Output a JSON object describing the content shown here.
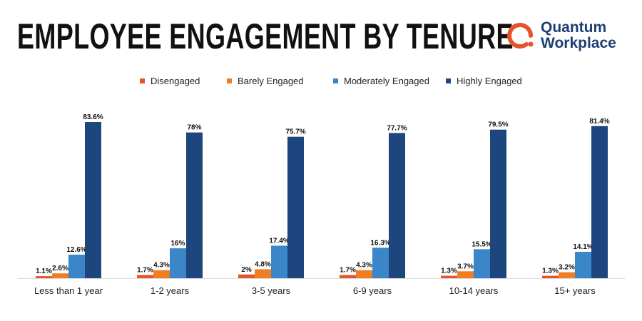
{
  "chart_data": {
    "type": "bar",
    "title": "EMPLOYEE ENGAGEMENT BY TENURE",
    "categories": [
      "Less than 1 year",
      "1-2 years",
      "3-5 years",
      "6-9 years",
      "10-14 years",
      "15+ years"
    ],
    "series": [
      {
        "name": "Disengaged",
        "color": "#e5532b",
        "values": [
          1.1,
          1.7,
          2,
          1.7,
          1.3,
          1.3
        ],
        "labels": [
          "1.1%",
          "1.7%",
          "2%",
          "1.7%",
          "1.3%",
          "1.3%"
        ]
      },
      {
        "name": "Barely Engaged",
        "color": "#f07d22",
        "values": [
          2.6,
          4.3,
          4.8,
          4.3,
          3.7,
          3.2
        ],
        "labels": [
          "2.6%",
          "4.3%",
          "4.8%",
          "4.3%",
          "3.7%",
          "3.2%"
        ]
      },
      {
        "name": "Moderately Engaged",
        "color": "#3a86c8",
        "values": [
          12.6,
          16,
          17.4,
          16.3,
          15.5,
          14.1
        ],
        "labels": [
          "12.6%",
          "16%",
          "17.4%",
          "16.3%",
          "15.5%",
          "14.1%"
        ]
      },
      {
        "name": "Highly Engaged",
        "color": "#1c467d",
        "values": [
          83.6,
          78,
          75.7,
          77.7,
          79.5,
          81.4
        ],
        "labels": [
          "83.6%",
          "78%",
          "75.7%",
          "77.7%",
          "79.5%",
          "81.4%"
        ]
      }
    ],
    "legend_position": "top",
    "grid": false,
    "ylim": [
      0,
      85
    ]
  },
  "logo": {
    "line1": "Quantum",
    "line2": "Workplace",
    "color": "#e5532b"
  }
}
